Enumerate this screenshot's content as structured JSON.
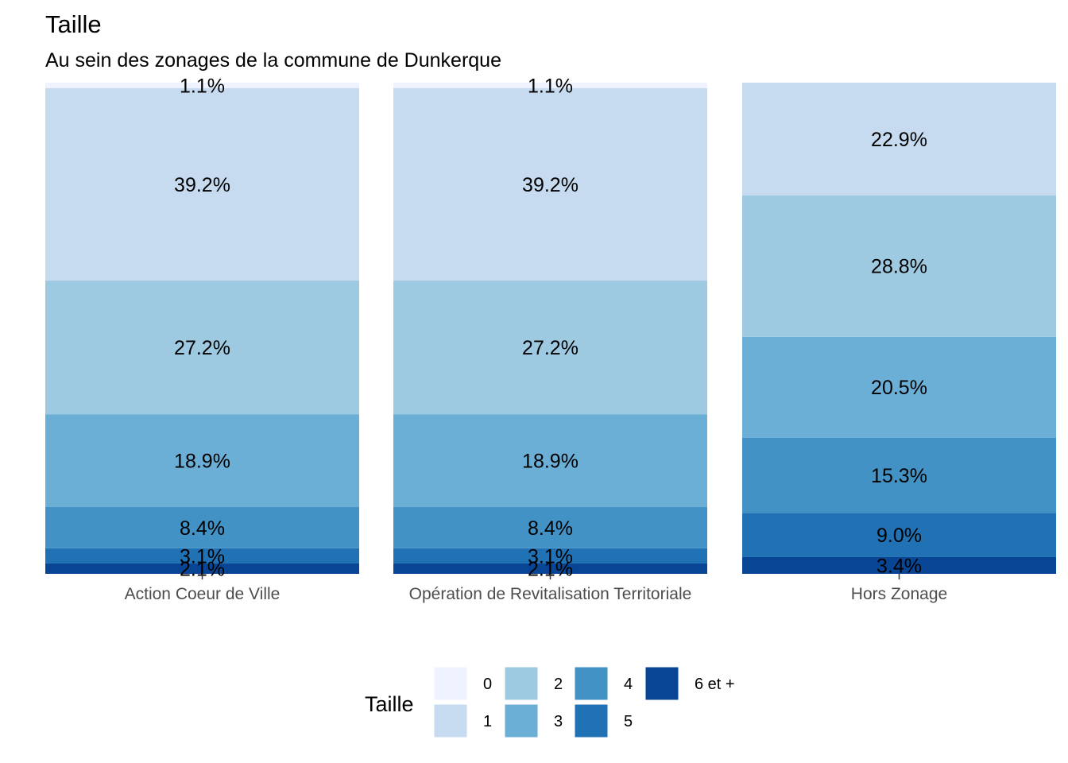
{
  "chart_data": {
    "type": "bar",
    "stacked": true,
    "percent": true,
    "title": "Taille",
    "subtitle": "Au sein des zonages de la commune de Dunkerque",
    "categories": [
      "Action Coeur de Ville",
      "Opération de Revitalisation Territoriale",
      "Hors Zonage"
    ],
    "series": [
      {
        "name": "0",
        "color": "#EFF3FF",
        "values": [
          1.1,
          1.1,
          0.0
        ]
      },
      {
        "name": "1",
        "color": "#C6DBEF",
        "values": [
          39.2,
          39.2,
          22.9
        ]
      },
      {
        "name": "2",
        "color": "#9ECAE1",
        "values": [
          27.2,
          27.2,
          28.8
        ]
      },
      {
        "name": "3",
        "color": "#6BAED6",
        "values": [
          18.9,
          18.9,
          20.5
        ]
      },
      {
        "name": "4",
        "color": "#4292C6",
        "values": [
          8.4,
          8.4,
          15.3
        ]
      },
      {
        "name": "5",
        "color": "#2171B5",
        "values": [
          3.1,
          3.1,
          9.0
        ]
      },
      {
        "name": "6 et +",
        "color": "#084594",
        "values": [
          2.1,
          2.1,
          3.4
        ]
      }
    ],
    "labels": [
      [
        "1.1%",
        "39.2%",
        "27.2%",
        "18.9%",
        "8.4%",
        "3.1%",
        "2.1%"
      ],
      [
        "1.1%",
        "39.2%",
        "27.2%",
        "18.9%",
        "8.4%",
        "3.1%",
        "2.1%"
      ],
      [
        "",
        "22.9%",
        "28.8%",
        "20.5%",
        "15.3%",
        "9.0%",
        "3.4%"
      ]
    ],
    "legend": {
      "title": "Taille",
      "position": "bottom"
    },
    "ylim": [
      0,
      100
    ],
    "grid": false
  }
}
